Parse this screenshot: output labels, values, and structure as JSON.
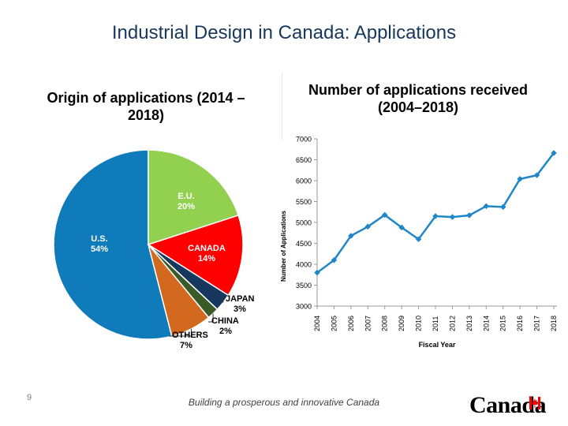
{
  "slide": {
    "title": "Industrial Design in Canada: Applications",
    "page_number": "9",
    "footer": "Building a prosperous and innovative Canada",
    "logo_text": "Canada"
  },
  "colors": {
    "title": "#17375e",
    "line": "#1f86c7",
    "us": "#0f7bba",
    "eu": "#92d050",
    "canada": "#ff0000",
    "japan": "#17375e",
    "china": "#3a5a28",
    "others": "#d2691e"
  },
  "chart_data": [
    {
      "type": "pie",
      "title": "Origin of applications (2014 –2018)",
      "slices": [
        {
          "label": "U.S.",
          "value": 54,
          "value_label": "54%",
          "color": "#0f7bba"
        },
        {
          "label": "E.U.",
          "value": 20,
          "value_label": "20%",
          "color": "#92d050"
        },
        {
          "label": "CANADA",
          "value": 14,
          "value_label": "14%",
          "color": "#ff0000"
        },
        {
          "label": "JAPAN",
          "value": 3,
          "value_label": "3%",
          "color": "#17375e"
        },
        {
          "label": "CHINA",
          "value": 2,
          "value_label": "2%",
          "color": "#3a5a28"
        },
        {
          "label": "OTHERS",
          "value": 7,
          "value_label": "7%",
          "color": "#d2691e"
        }
      ]
    },
    {
      "type": "line",
      "title": "Number of applications received (2004–2018)",
      "xlabel": "Fiscal Year",
      "ylabel": "Number of Applications",
      "x": [
        "2004",
        "2005",
        "2006",
        "2007",
        "2008",
        "2009",
        "2010",
        "2011",
        "2012",
        "2013",
        "2014",
        "2015",
        "2016",
        "2017",
        "2018"
      ],
      "y": [
        3800,
        4100,
        4680,
        4900,
        5180,
        4880,
        4600,
        5150,
        5130,
        5170,
        5390,
        5370,
        6040,
        6130,
        6660
      ],
      "ylim": [
        3000,
        7000
      ],
      "yticks": [
        3000,
        3500,
        4000,
        4500,
        5000,
        5500,
        6000,
        6500,
        7000
      ],
      "grid": false
    }
  ]
}
